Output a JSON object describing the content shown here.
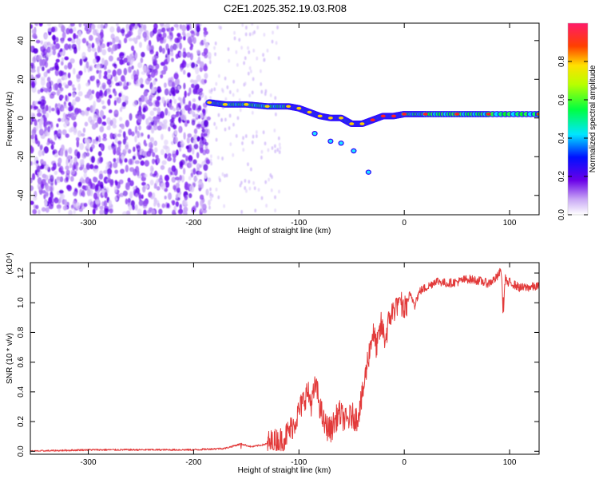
{
  "title": "C2E1.2025.352.19.03.R08",
  "colors": {
    "snr_line": "#e23a3a",
    "axis": "#000000",
    "background": "#ffffff"
  },
  "chart_data": [
    {
      "type": "heatmap",
      "name": "spectrogram",
      "xlabel": "Height of straight line (km)",
      "ylabel": "Frequency (Hz)",
      "xlim": [
        -355,
        128
      ],
      "ylim": [
        -50,
        49
      ],
      "xticks": [
        -300,
        -200,
        -100,
        0,
        100
      ],
      "xtick_labels": [
        "-300",
        "-200",
        "-100",
        "0",
        "100"
      ],
      "yticks": [
        -40,
        -20,
        0,
        20,
        40
      ],
      "ytick_labels": [
        "-40",
        "-20",
        "0",
        "20",
        "40"
      ],
      "noise_region_x": [
        -355,
        -185
      ],
      "signal_track": [
        {
          "x": -185,
          "y": 8
        },
        {
          "x": -170,
          "y": 7
        },
        {
          "x": -150,
          "y": 7
        },
        {
          "x": -130,
          "y": 6
        },
        {
          "x": -110,
          "y": 6
        },
        {
          "x": -100,
          "y": 5
        },
        {
          "x": -90,
          "y": 3
        },
        {
          "x": -80,
          "y": 1
        },
        {
          "x": -70,
          "y": 0
        },
        {
          "x": -60,
          "y": 0
        },
        {
          "x": -50,
          "y": -3
        },
        {
          "x": -40,
          "y": -3
        },
        {
          "x": -30,
          "y": -1
        },
        {
          "x": -20,
          "y": 1
        },
        {
          "x": -10,
          "y": 1
        },
        {
          "x": 0,
          "y": 2
        },
        {
          "x": 20,
          "y": 2
        },
        {
          "x": 50,
          "y": 2
        },
        {
          "x": 80,
          "y": 2
        },
        {
          "x": 128,
          "y": 2
        }
      ],
      "secondary_track": [
        {
          "x": -85,
          "y": -8
        },
        {
          "x": -70,
          "y": -12
        },
        {
          "x": -60,
          "y": -13
        },
        {
          "x": -48,
          "y": -17
        },
        {
          "x": -34,
          "y": -28
        }
      ],
      "colorbar": {
        "label": "Normalized spectral amplitude",
        "range": [
          0,
          1
        ],
        "ticks": [
          0.0,
          0.2,
          0.4,
          0.6,
          0.8
        ],
        "tick_labels": [
          "0.0",
          "0.2",
          "0.4",
          "0.6",
          "0.8"
        ]
      }
    },
    {
      "type": "line",
      "name": "snr",
      "xlabel": "Height of straight line (km)",
      "ylabel": "SNR (10 * v/v)",
      "y_multiplier_label": "(x10⁴)",
      "xlim": [
        -355,
        128
      ],
      "ylim": [
        -0.02,
        1.27
      ],
      "xticks": [
        -300,
        -200,
        -100,
        0,
        100
      ],
      "xtick_labels": [
        "-300",
        "-200",
        "-100",
        "0",
        "100"
      ],
      "yticks": [
        0.0,
        0.2,
        0.4,
        0.6,
        0.8,
        1.0,
        1.2
      ],
      "ytick_labels": [
        "0.0",
        "0.2",
        "0.4",
        "0.6",
        "0.8",
        "1.0",
        "1.2"
      ],
      "series": [
        {
          "name": "SNR",
          "color": "#e23a3a",
          "x": [
            -355,
            -300,
            -250,
            -200,
            -170,
            -155,
            -145,
            -130,
            -115,
            -105,
            -97,
            -92,
            -88,
            -84,
            -80,
            -76,
            -70,
            -62,
            -55,
            -50,
            -45,
            -40,
            -35,
            -30,
            -26,
            -22,
            -18,
            -14,
            -10,
            -5,
            0,
            5,
            10,
            15,
            20,
            25,
            30,
            40,
            50,
            60,
            70,
            80,
            88,
            92,
            94,
            96,
            98,
            100,
            110,
            128
          ],
          "values": [
            0.0,
            0.01,
            0.01,
            0.01,
            0.02,
            0.05,
            0.03,
            0.05,
            0.08,
            0.18,
            0.32,
            0.4,
            0.32,
            0.45,
            0.3,
            0.18,
            0.14,
            0.26,
            0.2,
            0.24,
            0.22,
            0.36,
            0.6,
            0.8,
            0.7,
            0.85,
            0.75,
            0.9,
            0.95,
            1.02,
            0.95,
            1.05,
            1.0,
            1.08,
            1.1,
            1.12,
            1.15,
            1.13,
            1.14,
            1.16,
            1.15,
            1.13,
            1.17,
            1.22,
            0.95,
            1.18,
            1.12,
            1.14,
            1.1,
            1.11
          ]
        }
      ]
    }
  ]
}
